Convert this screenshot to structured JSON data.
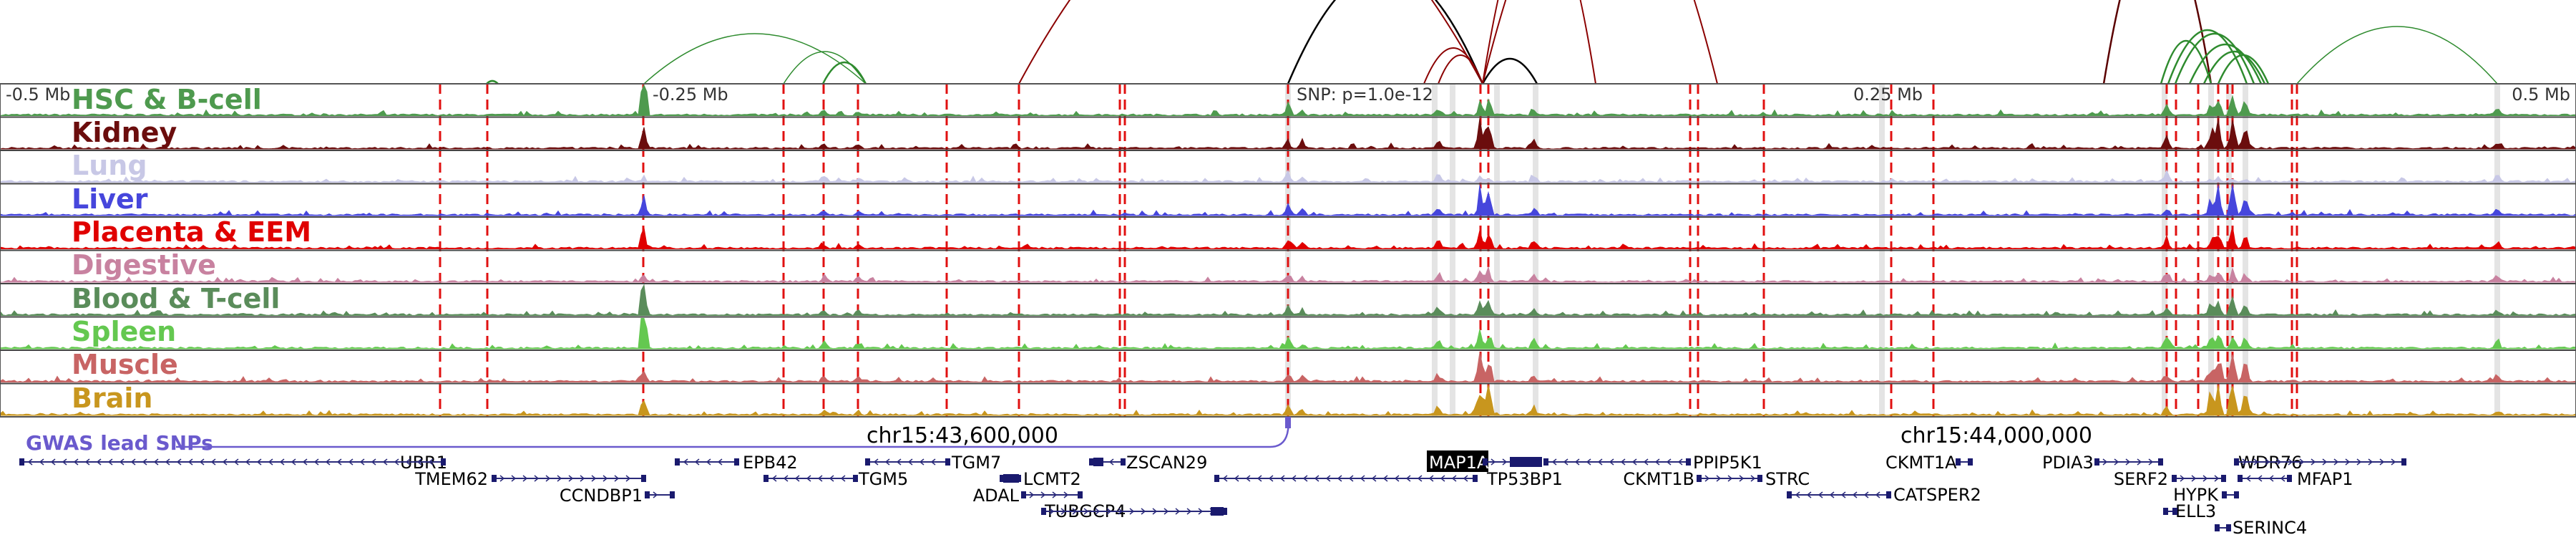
{
  "genome_browser": {
    "axis_labels": {
      "left": "-0.5 Mb",
      "left_mid": "-0.25 Mb",
      "snp": "SNP: p=1.0e-12",
      "right_mid": "0.25 Mb",
      "right": "0.5 Mb"
    },
    "tracks": [
      {
        "label": "HSC & B-cell",
        "color": "#4e9a4e"
      },
      {
        "label": "Kidney",
        "color": "#6b0d0d"
      },
      {
        "label": "Lung",
        "color": "#c8c8e6"
      },
      {
        "label": "Liver",
        "color": "#4646dc"
      },
      {
        "label": "Placenta & EEM",
        "color": "#e00000"
      },
      {
        "label": "Digestive",
        "color": "#c882a0"
      },
      {
        "label": "Blood & T-cell",
        "color": "#5a8c5a"
      },
      {
        "label": "Spleen",
        "color": "#64c850"
      },
      {
        "label": "Muscle",
        "color": "#c86464"
      },
      {
        "label": "Brain",
        "color": "#c8961e"
      }
    ],
    "gwas_label": "GWAS lead SNPs",
    "gwas_color": "#6a5acd",
    "coordinate_labels": [
      "chr15:43,600,000",
      "chr15:44,000,000"
    ],
    "highlighted_gene": "MAP1A",
    "genes": [
      {
        "name": "UBR1",
        "strand": "-"
      },
      {
        "name": "TMEM62",
        "strand": "+"
      },
      {
        "name": "CCNDBP1",
        "strand": "+"
      },
      {
        "name": "EPB42",
        "strand": "-"
      },
      {
        "name": "TGM5",
        "strand": "-"
      },
      {
        "name": "TGM7",
        "strand": "-"
      },
      {
        "name": "LCMT2",
        "strand": "-"
      },
      {
        "name": "ADAL",
        "strand": "+"
      },
      {
        "name": "ZSCAN29",
        "strand": "-"
      },
      {
        "name": "TUBGCP4",
        "strand": "+"
      },
      {
        "name": "MAP1A",
        "strand": "+"
      },
      {
        "name": "TP53BP1",
        "strand": "-"
      },
      {
        "name": "PPIP5K1",
        "strand": "-"
      },
      {
        "name": "CKMT1B",
        "strand": "+"
      },
      {
        "name": "STRC",
        "strand": "-"
      },
      {
        "name": "CKMT1A",
        "strand": "+"
      },
      {
        "name": "CATSPER2",
        "strand": "-"
      },
      {
        "name": "PDIA3",
        "strand": "+"
      },
      {
        "name": "SERF2",
        "strand": "+"
      },
      {
        "name": "HYPK",
        "strand": "+"
      },
      {
        "name": "ELL3",
        "strand": "-"
      },
      {
        "name": "SERINC4",
        "strand": "-"
      },
      {
        "name": "WDR76",
        "strand": "+"
      },
      {
        "name": "MFAP1",
        "strand": "-"
      }
    ]
  }
}
